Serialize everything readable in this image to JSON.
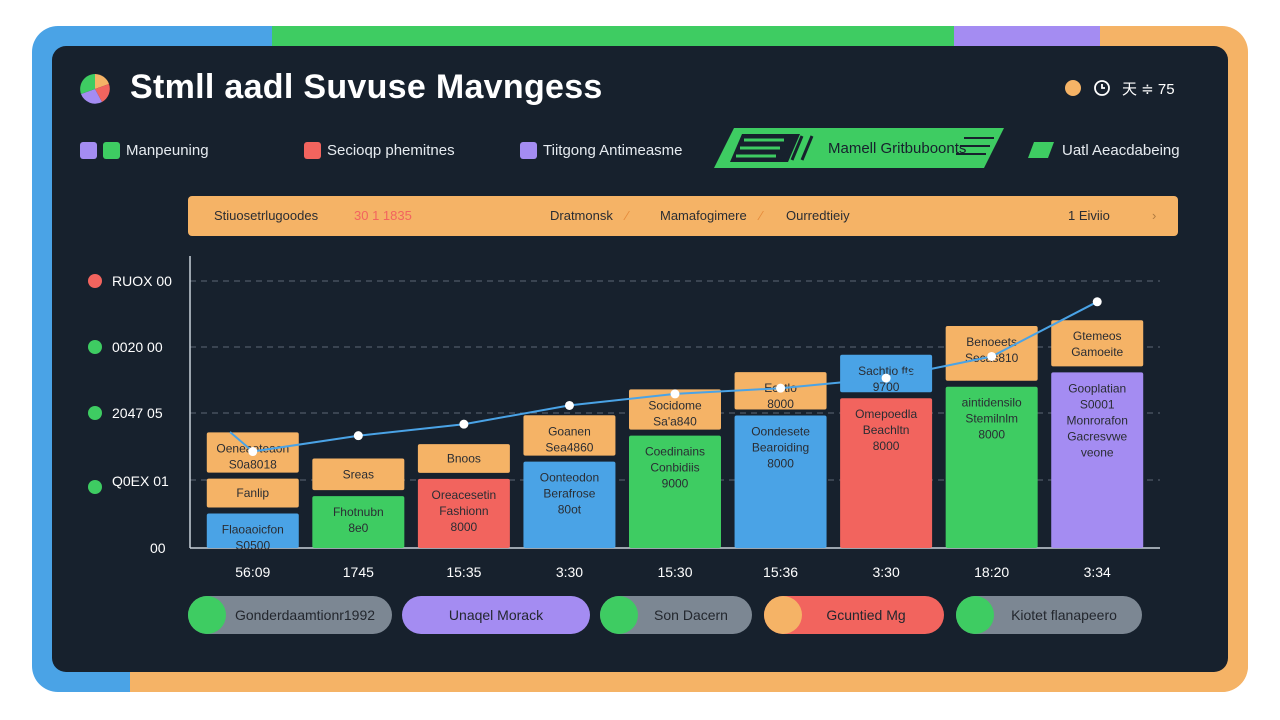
{
  "header": {
    "title": "Stmll aadl Suvuse Mavngess",
    "controls": {
      "circle": "●",
      "clock": "◷",
      "text": "天 ≑ 75"
    }
  },
  "legend": {
    "items": [
      {
        "label": "Manpeuning",
        "colors": [
          "#a48cf2",
          "#3ecc62"
        ]
      },
      {
        "label": "Secioqp phemitnes",
        "colors": [
          "#f2645e"
        ]
      },
      {
        "label": "Tiitgong Antimeasme",
        "colors": [
          "#a48cf2"
        ]
      },
      {
        "label": "Mamell Gritbuboonts",
        "highlight": true
      },
      {
        "label": "Uatl Aeacdabeing",
        "colors": [
          "#3ecc62"
        ]
      }
    ]
  },
  "filter_bar": {
    "items": [
      "Stiuosetrlugoodes",
      "30 1 1835",
      "Dratmonsk",
      "Mamafogimere",
      "Ourredtieiy",
      "1 Eiviio"
    ]
  },
  "y_axis": {
    "labels": [
      "RUOX 00",
      "0020 00",
      "2047 05",
      "Q0EX 01",
      "00"
    ],
    "dot_colors": [
      "#f2645e",
      "#3ecc62",
      "#3ecc62",
      "#3ecc62"
    ]
  },
  "footer_pills": [
    {
      "label": "Gonderdaamtionr1992",
      "color": "#7c8793",
      "knob": "#3ecc62",
      "text_color": "#23272e"
    },
    {
      "label": "Unaqel Morack",
      "color": "#a48cf2",
      "knob": "",
      "text_color": "#23272e"
    },
    {
      "label": "Son Dacern",
      "color": "#7c8793",
      "knob": "#3ecc62",
      "text_color": "#23272e"
    },
    {
      "label": "Gcuntied Mg",
      "color": "#f2645e",
      "knob": "#f5b366",
      "text_color": "#23272e"
    },
    {
      "label": "Kiotet flanapeero",
      "color": "#7c8793",
      "knob": "#3ecc62",
      "text_color": "#23272e"
    }
  ],
  "colors": {
    "panel": "#17212d",
    "orange": "#f5b366",
    "green": "#3ecc62",
    "blue": "#4aa3e6",
    "red": "#f2645e",
    "purple": "#a48cf2",
    "line": "#4aa3e6"
  },
  "chart_data": {
    "type": "bar",
    "title": "Stmll aadl Suvuse Mavngess",
    "categories": [
      "56:09",
      "1745",
      "15:35",
      "3:30",
      "15:30",
      "15:36",
      "3:30",
      "18:20",
      "3:34"
    ],
    "ylim": [
      0,
      10
    ],
    "grid": true,
    "stacks": [
      [
        {
          "value": 1.2,
          "color": "#4aa3e6",
          "labels": [
            "Flaoaoicfon",
            "S0500"
          ]
        },
        {
          "value": 1.0,
          "color": "#f5b366",
          "labels": [
            "Fanlip"
          ]
        },
        {
          "value": 1.4,
          "color": "#f5b366",
          "labels": [
            "Oeneaoteaon",
            "S0a8018"
          ]
        }
      ],
      [
        {
          "value": 1.8,
          "color": "#3ecc62",
          "labels": [
            "Fhotnubn",
            "8e0"
          ]
        },
        {
          "value": 1.1,
          "color": "#f5b366",
          "labels": [
            "Sreas"
          ]
        }
      ],
      [
        {
          "value": 2.4,
          "color": "#f2645e",
          "labels": [
            "Oreacesetin",
            "Fashionn",
            "8000"
          ]
        },
        {
          "value": 1.0,
          "color": "#f5b366",
          "labels": [
            "Bnoos"
          ]
        }
      ],
      [
        {
          "value": 3.0,
          "color": "#4aa3e6",
          "labels": [
            "Oonteodon",
            "Berafrose",
            "80ot"
          ]
        },
        {
          "value": 1.4,
          "color": "#f5b366",
          "labels": [
            "Goanen",
            "Sea4860"
          ]
        }
      ],
      [
        {
          "value": 3.9,
          "color": "#3ecc62",
          "labels": [
            "Coedinains",
            "Conbidiis",
            "9000"
          ]
        },
        {
          "value": 1.4,
          "color": "#f5b366",
          "labels": [
            "Socidome",
            "Sa'a840"
          ]
        }
      ],
      [
        {
          "value": 4.6,
          "color": "#4aa3e6",
          "labels": [
            "Oondesete",
            "Bearoiding",
            "8000"
          ]
        },
        {
          "value": 1.3,
          "color": "#f5b366",
          "labels": [
            "Ecctlo",
            "8000"
          ]
        }
      ],
      [
        {
          "value": 5.2,
          "color": "#f2645e",
          "labels": [
            "Omepoedla",
            "Beachltn",
            "8000"
          ]
        },
        {
          "value": 1.3,
          "color": "#4aa3e6",
          "labels": [
            "Sachtio fts",
            "9700"
          ]
        }
      ],
      [
        {
          "value": 5.6,
          "color": "#3ecc62",
          "labels": [
            "aintidensilo",
            "Stemilnlm",
            "8000"
          ]
        },
        {
          "value": 1.9,
          "color": "#f5b366",
          "labels": [
            "Benoeets",
            "Secas810"
          ]
        }
      ],
      [
        {
          "value": 6.1,
          "color": "#a48cf2",
          "labels": [
            "Gooplatian",
            "S0001",
            "Monrorafon",
            "Gacresvwe",
            "veone"
          ]
        },
        {
          "value": 1.6,
          "color": "#f5b366",
          "labels": [
            "Gtemeos",
            "Gamoeite"
          ]
        }
      ]
    ],
    "line": {
      "name": "trend",
      "values": [
        6.7,
        7.8,
        8.6,
        9.9,
        10.7,
        11.1,
        11.8,
        13.3,
        17.1
      ],
      "ylim": [
        0,
        20
      ]
    }
  }
}
